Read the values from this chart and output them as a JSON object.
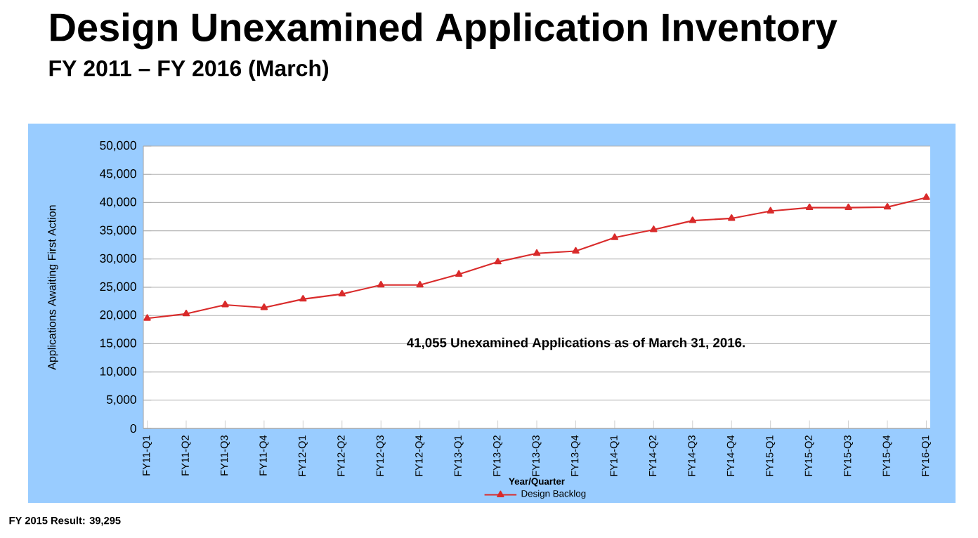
{
  "chart_data": {
    "type": "line",
    "title": "Design Unexamined Application Inventory",
    "subtitle": "FY 2011 – FY 2016 (March)",
    "xlabel": "Year/Quarter",
    "ylabel": "Applications Awaiting First Action",
    "categories": [
      "FY11-Q1",
      "FY11-Q2",
      "FY11-Q3",
      "FY11-Q4",
      "FY12-Q1",
      "FY12-Q2",
      "FY12-Q3",
      "FY12-Q4",
      "FY13-Q1",
      "FY13-Q2",
      "FY13-Q3",
      "FY13-Q4",
      "FY14-Q1",
      "FY14-Q2",
      "FY14-Q3",
      "FY14-Q4",
      "FY15-Q1",
      "FY15-Q2",
      "FY15-Q3",
      "FY15-Q4",
      "FY16-Q1"
    ],
    "series": [
      {
        "name": "Design Backlog",
        "color": "#d92b2b",
        "values": [
          19500,
          20300,
          21900,
          21400,
          22900,
          23800,
          25400,
          25400,
          27300,
          29500,
          31000,
          31400,
          33800,
          35200,
          36800,
          37200,
          38500,
          39100,
          39100,
          39200,
          40900
        ]
      }
    ],
    "ylim": [
      0,
      50000
    ],
    "yticks": [
      0,
      {
        "value": 5000,
        "label": "5,000"
      },
      {
        "value": 10000,
        "label": "10,000"
      },
      {
        "value": 15000,
        "label": "15,000"
      },
      {
        "value": 20000,
        "label": "20,000"
      },
      {
        "value": 25000,
        "label": "25,000"
      },
      {
        "value": 30000,
        "label": "30,000"
      },
      {
        "value": 35000,
        "label": "35,000"
      },
      {
        "value": 40000,
        "label": "40,000"
      },
      {
        "value": 45000,
        "label": "45,000"
      },
      {
        "value": 50000,
        "label": "50,000"
      }
    ],
    "grid": "y",
    "legend": "bottom",
    "marker": "triangle",
    "line_style": "solid",
    "annotations": [
      "41,055 Unexamined Applications as of March 31, 2016.",
      "FY 2015 Result: 39,295"
    ]
  }
}
